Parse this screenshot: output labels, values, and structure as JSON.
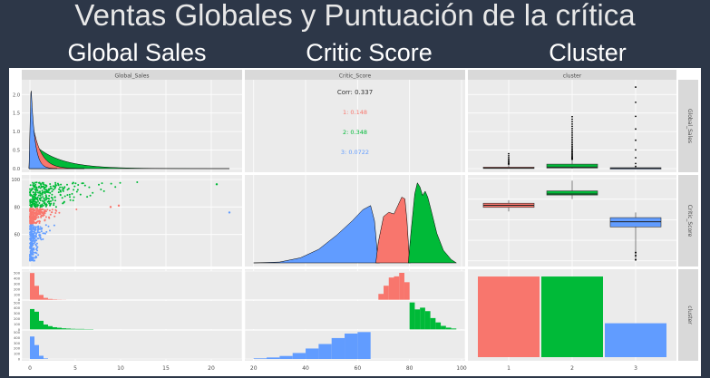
{
  "slide": {
    "title": "Ventas Globales y Puntuación de la crítica",
    "col_headers": [
      "Global Sales",
      "Critic Score",
      "Cluster"
    ]
  },
  "chart_data": {
    "type": "pairs",
    "strips": {
      "top": [
        "Global_Sales",
        "Critic_Score",
        "cluster"
      ],
      "right": [
        "Global_Sales",
        "Critic_Score",
        "cluster"
      ]
    },
    "colors": {
      "1": "#f8766d",
      "2": "#00ba38",
      "3": "#619cff"
    },
    "axes": {
      "global_sales": {
        "range": [
          -0.5,
          23
        ],
        "ticks": [
          0,
          5,
          10,
          15,
          20
        ],
        "tick_labels": [
          "0",
          "5",
          "10",
          "15",
          "20"
        ]
      },
      "global_sales_density": {
        "ticks": [
          0,
          0.5,
          1.0,
          1.5,
          2.0
        ],
        "tick_labels": [
          "0.0",
          "0.5",
          "1.0",
          "1.5",
          "2.0"
        ]
      },
      "critic_score": {
        "range": [
          18,
          100
        ],
        "ticks": [
          20,
          40,
          60,
          80,
          100
        ],
        "tick_labels": [
          "20",
          "40",
          "60",
          "80",
          "100"
        ],
        "y_ticks": [
          60,
          80,
          100
        ],
        "y_tick_labels": [
          "60",
          "80",
          "100"
        ]
      },
      "cluster": {
        "ticks": [
          1,
          2,
          3
        ],
        "tick_labels": [
          "1",
          "2",
          "3"
        ]
      },
      "count": {
        "ticks": [
          0,
          100,
          200,
          300,
          400,
          500
        ],
        "tick_labels": [
          "0",
          "100",
          "200",
          "300",
          "400",
          "500"
        ]
      }
    },
    "correlation": {
      "overall": "Corr: 0.337",
      "by_cluster": [
        {
          "cluster": "1",
          "label": "1: 0.148"
        },
        {
          "cluster": "2",
          "label": "2: 0.348"
        },
        {
          "cluster": "3",
          "label": "3: 0.0722"
        }
      ]
    },
    "cluster_counts": [
      {
        "cluster": "1",
        "count": 440
      },
      {
        "cluster": "2",
        "count": 440
      },
      {
        "cluster": "3",
        "count": 185
      }
    ],
    "critic_score_by_cluster": [
      {
        "cluster": "1",
        "min": 68,
        "q1": 72,
        "median": 74,
        "q3": 76,
        "max": 79
      },
      {
        "cluster": "2",
        "min": 80,
        "q1": 84,
        "median": 85,
        "q3": 88,
        "max": 98
      },
      {
        "cluster": "3",
        "min": 21,
        "q1": 53,
        "median": 58,
        "q3": 62,
        "max": 67
      }
    ],
    "global_sales_by_cluster": [
      {
        "cluster": "1",
        "q1": 0.05,
        "median": 0.15,
        "q3": 0.4,
        "whisker": 1.2,
        "outlier_max": 4.0
      },
      {
        "cluster": "2",
        "q1": 0.15,
        "median": 0.4,
        "q3": 1.2,
        "whisker": 2.5,
        "outlier_max": 14.0
      },
      {
        "cluster": "3",
        "q1": 0.03,
        "median": 0.1,
        "q3": 0.25,
        "whisker": 0.6,
        "outlier_max": 22.0
      }
    ],
    "critic_score_histograms": [
      {
        "cluster": "1",
        "bin_edges": [
          68,
          70,
          72,
          74,
          76,
          78,
          80
        ],
        "counts": [
          50,
          120,
          190,
          200,
          230,
          150
        ]
      },
      {
        "cluster": "2",
        "bin_edges": [
          80,
          82,
          84,
          86,
          88,
          90,
          92,
          94,
          96,
          98
        ],
        "counts": [
          310,
          230,
          250,
          210,
          130,
          80,
          40,
          20,
          10
        ]
      },
      {
        "cluster": "3",
        "bin_edges": [
          20,
          25,
          30,
          35,
          40,
          45,
          50,
          55,
          60,
          65
        ],
        "counts": [
          2,
          5,
          10,
          20,
          35,
          50,
          70,
          85,
          90
        ]
      }
    ],
    "global_sales_histograms": [
      {
        "cluster": "1",
        "bin_edges": [
          0,
          0.5,
          1,
          1.5,
          2,
          2.5,
          3,
          3.5,
          4
        ],
        "counts": [
          500,
          260,
          90,
          35,
          15,
          8,
          4,
          2
        ]
      },
      {
        "cluster": "2",
        "bin_edges": [
          0,
          0.5,
          1,
          1.5,
          2,
          2.5,
          3,
          3.5,
          4,
          4.5,
          5,
          6,
          7
        ],
        "counts": [
          380,
          330,
          160,
          90,
          60,
          40,
          30,
          20,
          15,
          10,
          8,
          5
        ]
      },
      {
        "cluster": "3",
        "bin_edges": [
          0,
          0.5,
          1,
          1.5,
          2
        ],
        "counts": [
          420,
          260,
          60,
          10
        ]
      }
    ]
  }
}
